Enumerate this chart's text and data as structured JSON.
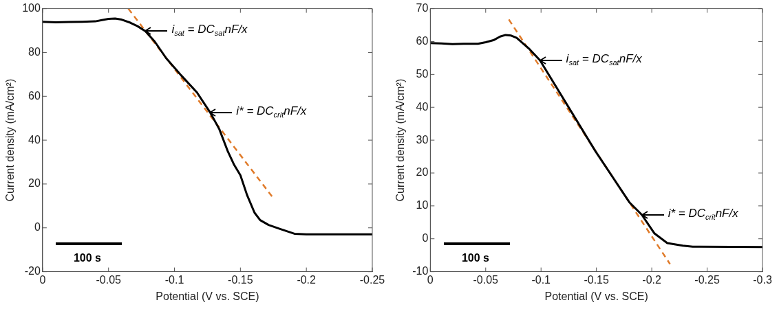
{
  "chart_data": [
    {
      "type": "line",
      "xlabel": "Potential (V vs. SCE)",
      "ylabel": "Current density (mA/cm²)",
      "xlim": [
        0,
        -0.25
      ],
      "xticks": [
        0,
        -0.05,
        -0.1,
        -0.15,
        -0.2,
        -0.25
      ],
      "ylim": [
        -20,
        100
      ],
      "yticks": [
        -20,
        0,
        20,
        40,
        60,
        80,
        100
      ],
      "marker": "none",
      "legend": false,
      "series": [
        {
          "color": "#000000",
          "line_style": "solid",
          "x": [
            0,
            -0.01,
            -0.02,
            -0.03,
            -0.04,
            -0.045,
            -0.05,
            -0.055,
            -0.06,
            -0.0665,
            -0.072,
            -0.078,
            -0.085,
            -0.0937,
            -0.105,
            -0.117,
            -0.127,
            -0.134,
            -0.1405,
            -0.145,
            -0.15,
            -0.155,
            -0.1607,
            -0.165,
            -0.1714,
            -0.18,
            -0.191,
            -0.2,
            -0.25
          ],
          "values": [
            94,
            93.8,
            93.9,
            94,
            94.2,
            94.8,
            95.3,
            95.5,
            95,
            93.6,
            92,
            89.7,
            85,
            77.4,
            69.6,
            61.8,
            52.7,
            45,
            34.8,
            29,
            24,
            15,
            6.9,
            3.5,
            1.3,
            -0.5,
            -2.7,
            -3,
            -3
          ]
        },
        {
          "color": "#e07b2a",
          "line_style": "dashed",
          "x": [
            -0.065,
            -0.175
          ],
          "values": [
            100,
            13.5
          ]
        }
      ],
      "annotations": [
        {
          "text": "i$_{sat}$ = DC$_{sat}$nF/x",
          "x": -0.078,
          "y": 89.7
        },
        {
          "text": "i* = DC$_{crit}$nF/x",
          "x": -0.127,
          "y": 52.7
        },
        "100 s"
      ]
    },
    {
      "type": "line",
      "xlabel": "Potential (V vs. SCE)",
      "ylabel": "Current density (mA/cm²)",
      "xlim": [
        0,
        -0.3
      ],
      "xticks": [
        0,
        -0.05,
        -0.1,
        -0.15,
        -0.2,
        -0.25,
        -0.3
      ],
      "ylim": [
        -10,
        70
      ],
      "yticks": [
        -10,
        0,
        10,
        20,
        30,
        40,
        50,
        60,
        70
      ],
      "marker": "none",
      "legend": false,
      "series": [
        {
          "color": "#000000",
          "line_style": "solid",
          "x": [
            0,
            -0.01,
            -0.02,
            -0.03,
            -0.043,
            -0.05,
            -0.057,
            -0.063,
            -0.068,
            -0.073,
            -0.078,
            -0.0895,
            -0.099,
            -0.149,
            -0.18,
            -0.191,
            -0.2025,
            -0.214,
            -0.228,
            -0.237,
            -0.3
          ],
          "values": [
            59.5,
            59.4,
            59.2,
            59.3,
            59.3,
            59.8,
            60.4,
            61.5,
            62,
            61.8,
            61.1,
            57.7,
            54.3,
            26.7,
            11,
            7.3,
            1.6,
            -1.3,
            -2.1,
            -2.4,
            -2.5
          ]
        },
        {
          "color": "#e07b2a",
          "line_style": "dashed",
          "x": [
            -0.0709,
            -0.2165
          ],
          "values": [
            66.7,
            -7.7
          ]
        }
      ],
      "annotations": [
        {
          "text": "i$_{sat}$ = DC$_{sat}$nF/x",
          "x": -0.099,
          "y": 54.3
        },
        {
          "text": "i* = DC$_{crit}$nF/x",
          "x": -0.191,
          "y": 7.3
        },
        "100 s"
      ]
    }
  ]
}
